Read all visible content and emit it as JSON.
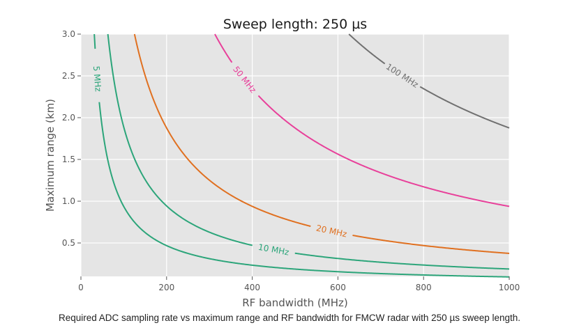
{
  "chart_data": {
    "type": "line",
    "title": "Sweep length: 250 µs",
    "xlabel": "RF bandwidth (MHz)",
    "ylabel": "Maximum range (km)",
    "xlim": [
      0,
      1000
    ],
    "ylim": [
      0.1,
      3.0
    ],
    "xticks": [
      0,
      200,
      400,
      600,
      800,
      1000
    ],
    "yticks": [
      0.5,
      1.0,
      1.5,
      2.0,
      2.5,
      3.0
    ],
    "ytick_labels": [
      "0.5",
      "1.0",
      "1.5",
      "2.0",
      "2.5",
      "3.0"
    ],
    "grid": true,
    "background": "#e5e5e5",
    "sweep_length_us": 250,
    "series": [
      {
        "name": "5 MHz",
        "color": "#2ca57a",
        "x_start": 30,
        "label_x": 38,
        "x": [
          30,
          40,
          50,
          100,
          200,
          400,
          700,
          1000
        ],
        "y": [
          3.13,
          2.34,
          1.88,
          0.94,
          0.47,
          0.23,
          0.134,
          0.094
        ]
      },
      {
        "name": "10 MHz",
        "color": "#2ca57a",
        "x_start": 60,
        "label_x": 450,
        "x": [
          60,
          100,
          200,
          300,
          450,
          700,
          1000
        ],
        "y": [
          3.13,
          1.88,
          0.94,
          0.63,
          0.42,
          0.27,
          0.19
        ]
      },
      {
        "name": "20 MHz",
        "color": "#e07020",
        "x_start": 125,
        "label_x": 585,
        "x": [
          125,
          200,
          300,
          400,
          585,
          800,
          1000
        ],
        "y": [
          3.0,
          1.88,
          1.25,
          0.94,
          0.64,
          0.47,
          0.375
        ]
      },
      {
        "name": "50 MHz",
        "color": "#e8409a",
        "x_start": 312,
        "label_x": 382,
        "x": [
          312,
          382,
          500,
          700,
          1000
        ],
        "y": [
          3.0,
          2.45,
          1.88,
          1.34,
          0.94
        ]
      },
      {
        "name": "100 MHz",
        "color": "#707070",
        "x_start": 625,
        "label_x": 750,
        "x": [
          625,
          750,
          850,
          1000
        ],
        "y": [
          3.0,
          2.5,
          2.21,
          1.88
        ]
      }
    ]
  },
  "caption": "Required ADC sampling rate vs maximum range and RF bandwidth for FMCW radar with 250 µs sweep length."
}
